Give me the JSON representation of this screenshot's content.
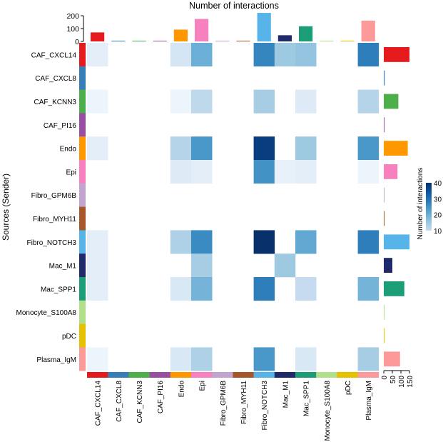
{
  "chart_data": {
    "type": "heatmap",
    "title": "Number of interactions",
    "ylabel": "Sources (Sender)",
    "legend_title": "Number of interactions",
    "legend_ticks": [
      10,
      20,
      30,
      40
    ],
    "color_range": [
      0,
      40
    ],
    "colors": {
      "low": "#f7fbff",
      "high": "#08306b"
    },
    "top_axis_ticks": [
      0,
      100,
      200
    ],
    "right_axis_ticks": [
      0,
      50,
      100,
      150
    ],
    "cell_types": [
      "CAF_CXCL14",
      "CAF_CXCL8",
      "CAF_KCNN3",
      "CAF_PI16",
      "Endo",
      "Epi",
      "Fibro_GPM6B",
      "Fibro_MYH11",
      "Fibro_NOTCH3",
      "Mac_M1",
      "Mac_SPP1",
      "Monocyte_S100A8",
      "pDC",
      "Plasma_IgM"
    ],
    "cell_colors": [
      "#e41a1c",
      "#377eb8",
      "#4daf4a",
      "#984ea3",
      "#ff9800",
      "#f781bf",
      "#c2a5cf",
      "#a65628",
      "#56b4e9",
      "#1f2a6b",
      "#1b9e77",
      "#b2df8a",
      "#e6c100",
      "#fb9a99"
    ],
    "incoming_totals": [
      70,
      3,
      3,
      5,
      92,
      175,
      2,
      5,
      222,
      48,
      118,
      3,
      5,
      162
    ],
    "outgoing_totals": [
      150,
      5,
      85,
      3,
      140,
      80,
      3,
      3,
      150,
      50,
      120,
      3,
      3,
      95
    ],
    "matrix": [
      [
        4,
        0,
        0,
        0,
        7,
        20,
        0,
        0,
        27,
        15,
        16,
        0,
        0,
        28
      ],
      [
        0,
        0,
        0,
        0,
        0,
        0,
        0,
        0,
        0,
        0,
        0,
        0,
        0,
        0
      ],
      [
        2,
        0,
        0,
        0,
        2,
        11,
        0,
        0,
        14,
        0,
        5,
        0,
        0,
        12
      ],
      [
        0,
        0,
        0,
        0,
        0,
        0,
        0,
        0,
        0,
        0,
        0,
        0,
        0,
        0
      ],
      [
        4,
        0,
        0,
        0,
        12,
        24,
        0,
        0,
        38,
        0,
        15,
        0,
        0,
        24
      ],
      [
        0,
        0,
        0,
        0,
        5,
        4,
        0,
        0,
        25,
        3,
        4,
        0,
        0,
        2
      ],
      [
        0,
        0,
        0,
        0,
        0,
        0,
        0,
        0,
        0,
        0,
        0,
        0,
        0,
        0
      ],
      [
        0,
        0,
        0,
        0,
        0,
        0,
        0,
        0,
        0,
        0,
        0,
        0,
        0,
        0
      ],
      [
        4,
        0,
        0,
        0,
        13,
        26,
        0,
        0,
        42,
        0,
        21,
        0,
        0,
        28
      ],
      [
        4,
        0,
        0,
        0,
        0,
        14,
        0,
        0,
        0,
        15,
        0,
        0,
        0,
        0
      ],
      [
        4,
        0,
        0,
        0,
        6,
        19,
        0,
        0,
        28,
        0,
        10,
        0,
        0,
        19
      ],
      [
        0,
        0,
        0,
        0,
        0,
        0,
        0,
        0,
        0,
        0,
        0,
        0,
        0,
        0
      ],
      [
        0,
        0,
        0,
        0,
        0,
        0,
        0,
        0,
        0,
        0,
        0,
        0,
        0,
        0
      ],
      [
        2,
        0,
        0,
        0,
        6,
        13,
        0,
        0,
        24,
        0,
        6,
        0,
        0,
        14
      ]
    ]
  }
}
